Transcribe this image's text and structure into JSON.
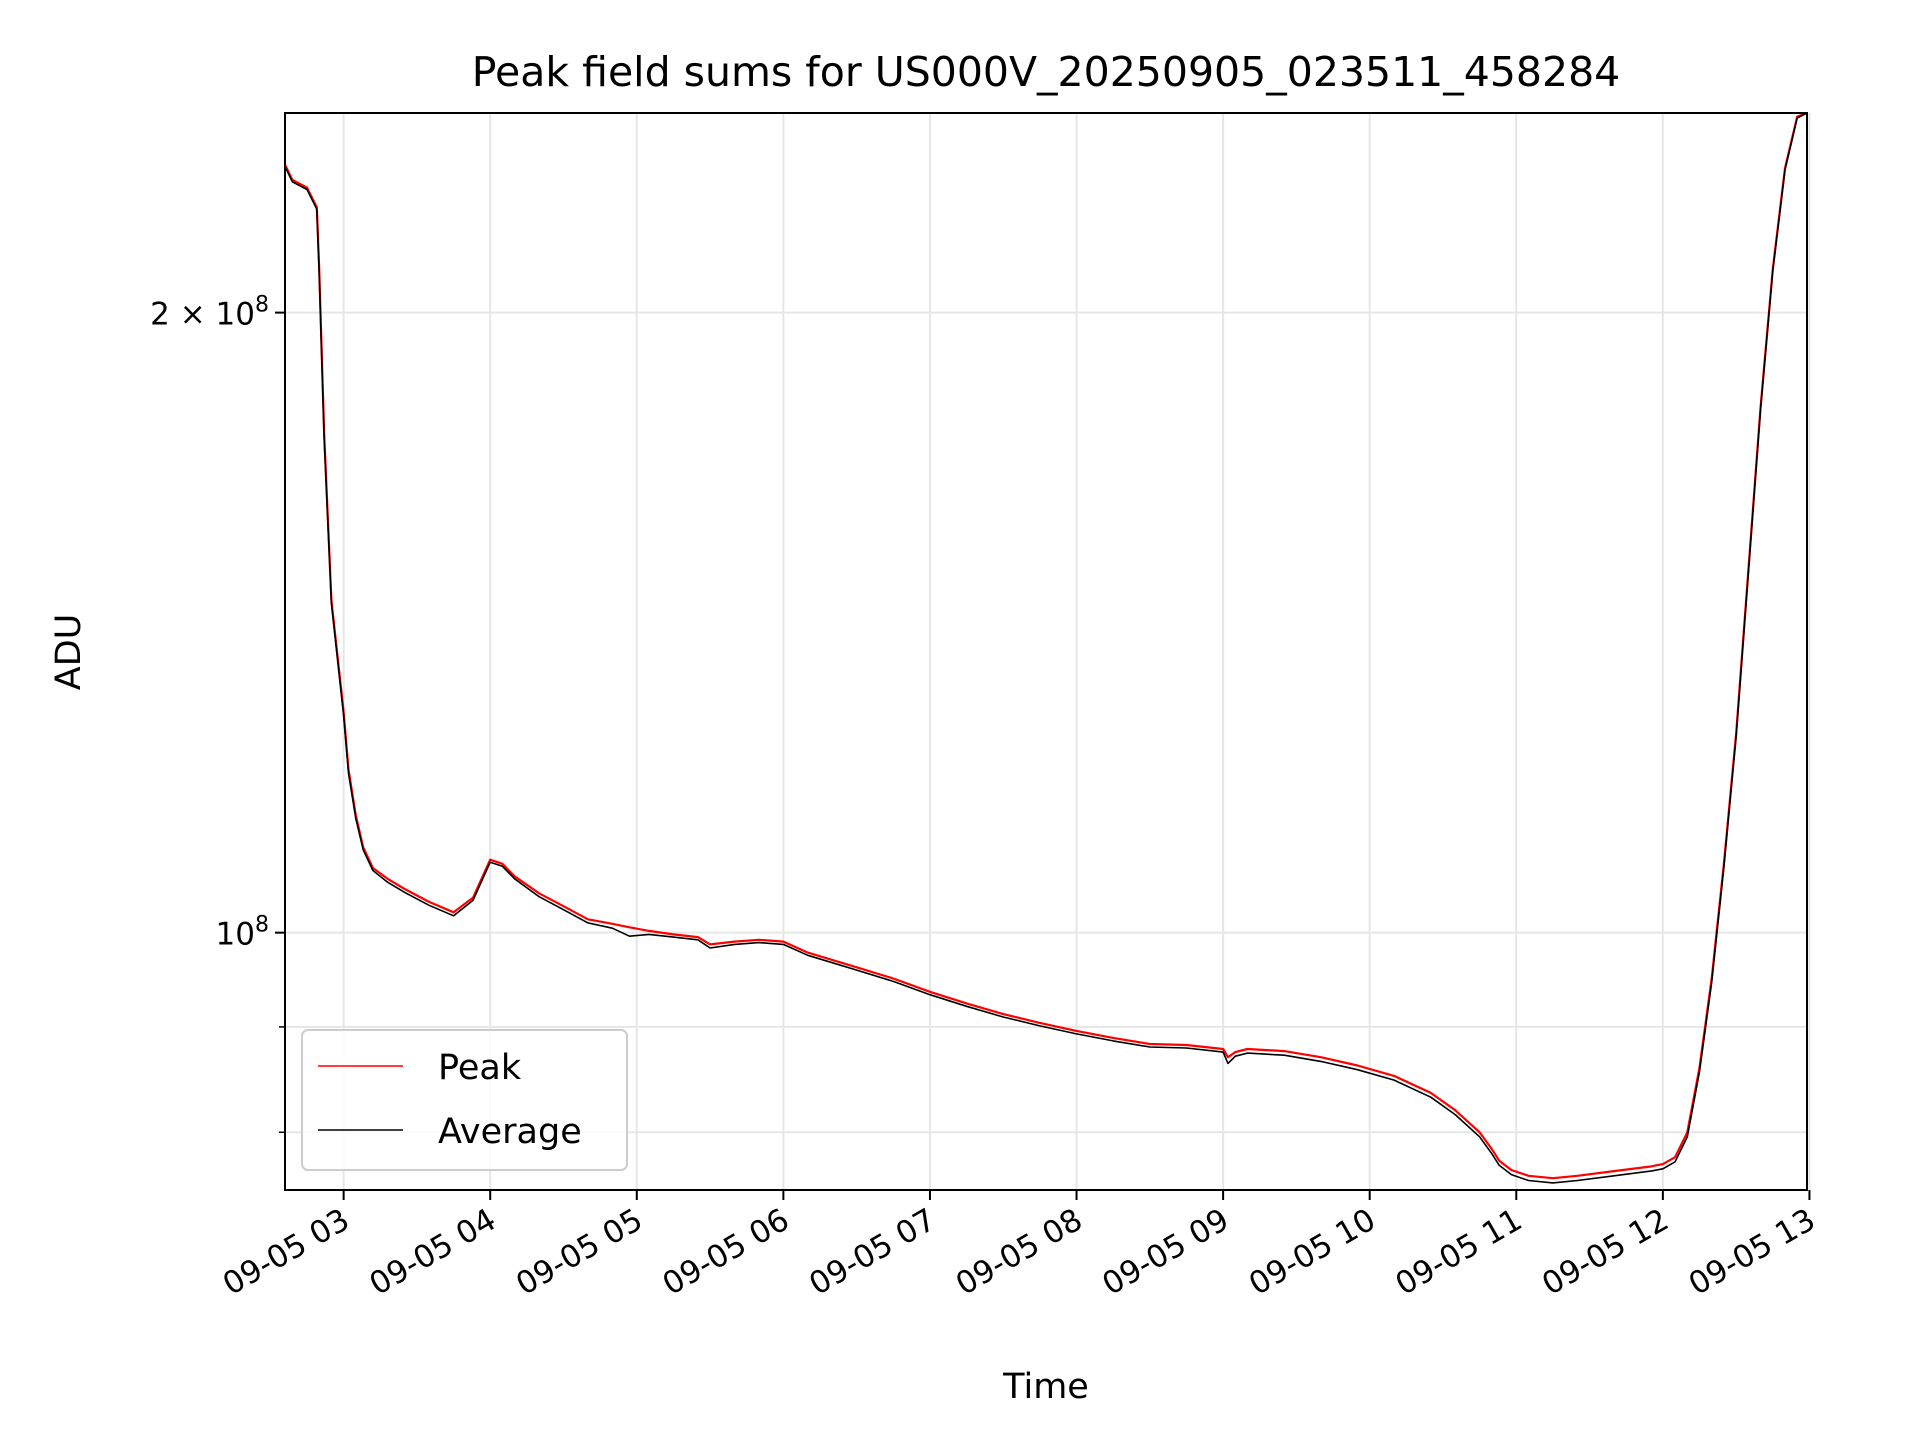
{
  "chart_data": {
    "type": "line",
    "title": "Peak field sums for US000V_20250905_023511_458284",
    "xlabel": "Time",
    "ylabel": "ADU",
    "y_scale": "log",
    "ylim": [
      75000000,
      250000000
    ],
    "xlim": [
      "2025-09-05 02:36",
      "2025-09-05 12:59"
    ],
    "x_ticks": [
      "09-05 03",
      "09-05 04",
      "09-05 05",
      "09-05 06",
      "09-05 07",
      "09-05 08",
      "09-05 09",
      "09-05 10",
      "09-05 11",
      "09-05 12",
      "09-05 13"
    ],
    "y_ticks": [
      {
        "value": 100000000,
        "base": "10",
        "exp": "8",
        "coef": ""
      },
      {
        "value": 200000000,
        "base": "10",
        "exp": "8",
        "coef": "2 × "
      }
    ],
    "y_minor_ticks": [
      80000000,
      90000000
    ],
    "grid": true,
    "legend": "lower-left",
    "series": [
      {
        "name": "Peak",
        "color": "#ff0000",
        "x": [
          "2025-09-05 02:36",
          "2025-09-05 02:39",
          "2025-09-05 02:45",
          "2025-09-05 02:49",
          "2025-09-05 02:50",
          "2025-09-05 02:52",
          "2025-09-05 02:55",
          "2025-09-05 03:00",
          "2025-09-05 03:02",
          "2025-09-05 03:05",
          "2025-09-05 03:08",
          "2025-09-05 03:12",
          "2025-09-05 03:18",
          "2025-09-05 03:25",
          "2025-09-05 03:35",
          "2025-09-05 03:45",
          "2025-09-05 03:53",
          "2025-09-05 04:00",
          "2025-09-05 04:05",
          "2025-09-05 04:10",
          "2025-09-05 04:20",
          "2025-09-05 04:30",
          "2025-09-05 04:40",
          "2025-09-05 04:50",
          "2025-09-05 04:57",
          "2025-09-05 05:05",
          "2025-09-05 05:15",
          "2025-09-05 05:25",
          "2025-09-05 05:30",
          "2025-09-05 05:40",
          "2025-09-05 05:50",
          "2025-09-05 06:00",
          "2025-09-05 06:10",
          "2025-09-05 06:20",
          "2025-09-05 06:30",
          "2025-09-05 06:45",
          "2025-09-05 07:00",
          "2025-09-05 07:15",
          "2025-09-05 07:30",
          "2025-09-05 07:45",
          "2025-09-05 08:00",
          "2025-09-05 08:15",
          "2025-09-05 08:30",
          "2025-09-05 08:45",
          "2025-09-05 09:00",
          "2025-09-05 09:02",
          "2025-09-05 09:05",
          "2025-09-05 09:10",
          "2025-09-05 09:25",
          "2025-09-05 09:40",
          "2025-09-05 09:55",
          "2025-09-05 10:10",
          "2025-09-05 10:25",
          "2025-09-05 10:35",
          "2025-09-05 10:45",
          "2025-09-05 10:50",
          "2025-09-05 10:53",
          "2025-09-05 10:58",
          "2025-09-05 11:05",
          "2025-09-05 11:15",
          "2025-09-05 11:25",
          "2025-09-05 11:40",
          "2025-09-05 11:55",
          "2025-09-05 12:00",
          "2025-09-05 12:05",
          "2025-09-05 12:10",
          "2025-09-05 12:15",
          "2025-09-05 12:20",
          "2025-09-05 12:25",
          "2025-09-05 12:30",
          "2025-09-05 12:35",
          "2025-09-05 12:40",
          "2025-09-05 12:45",
          "2025-09-05 12:50",
          "2025-09-05 12:55",
          "2025-09-05 12:59"
        ],
        "y": [
          236000000,
          232000000,
          230000000,
          225000000,
          210000000,
          175000000,
          145000000,
          128000000,
          120000000,
          114000000,
          110000000,
          107500000,
          106200000,
          105000000,
          103500000,
          102300000,
          104000000,
          108500000,
          108000000,
          106500000,
          104500000,
          103000000,
          101500000,
          101000000,
          100600000,
          100200000,
          99800000,
          99500000,
          98700000,
          99000000,
          99200000,
          99000000,
          97800000,
          97000000,
          96200000,
          95000000,
          93600000,
          92400000,
          91300000,
          90400000,
          89600000,
          88900000,
          88300000,
          88200000,
          87800000,
          87000000,
          87500000,
          87800000,
          87600000,
          87000000,
          86200000,
          85200000,
          83600000,
          82000000,
          80000000,
          78500000,
          77500000,
          76700000,
          76200000,
          76000000,
          76200000,
          76600000,
          77000000,
          77200000,
          77800000,
          80000000,
          86000000,
          95000000,
          108000000,
          125000000,
          150000000,
          180000000,
          210000000,
          235000000,
          249000000,
          250000000
        ]
      },
      {
        "name": "Average",
        "color": "#000000",
        "x": [
          "2025-09-05 02:36",
          "2025-09-05 02:39",
          "2025-09-05 02:45",
          "2025-09-05 02:49",
          "2025-09-05 02:50",
          "2025-09-05 02:52",
          "2025-09-05 02:55",
          "2025-09-05 03:00",
          "2025-09-05 03:02",
          "2025-09-05 03:05",
          "2025-09-05 03:08",
          "2025-09-05 03:12",
          "2025-09-05 03:18",
          "2025-09-05 03:25",
          "2025-09-05 03:35",
          "2025-09-05 03:45",
          "2025-09-05 03:53",
          "2025-09-05 04:00",
          "2025-09-05 04:05",
          "2025-09-05 04:10",
          "2025-09-05 04:20",
          "2025-09-05 04:30",
          "2025-09-05 04:40",
          "2025-09-05 04:50",
          "2025-09-05 04:57",
          "2025-09-05 05:05",
          "2025-09-05 05:15",
          "2025-09-05 05:25",
          "2025-09-05 05:30",
          "2025-09-05 05:40",
          "2025-09-05 05:50",
          "2025-09-05 06:00",
          "2025-09-05 06:10",
          "2025-09-05 06:20",
          "2025-09-05 06:30",
          "2025-09-05 06:45",
          "2025-09-05 07:00",
          "2025-09-05 07:15",
          "2025-09-05 07:30",
          "2025-09-05 07:45",
          "2025-09-05 08:00",
          "2025-09-05 08:15",
          "2025-09-05 08:30",
          "2025-09-05 08:45",
          "2025-09-05 09:00",
          "2025-09-05 09:02",
          "2025-09-05 09:05",
          "2025-09-05 09:10",
          "2025-09-05 09:25",
          "2025-09-05 09:40",
          "2025-09-05 09:55",
          "2025-09-05 10:10",
          "2025-09-05 10:25",
          "2025-09-05 10:35",
          "2025-09-05 10:45",
          "2025-09-05 10:50",
          "2025-09-05 10:53",
          "2025-09-05 10:58",
          "2025-09-05 11:05",
          "2025-09-05 11:15",
          "2025-09-05 11:25",
          "2025-09-05 11:40",
          "2025-09-05 11:55",
          "2025-09-05 12:00",
          "2025-09-05 12:05",
          "2025-09-05 12:10",
          "2025-09-05 12:15",
          "2025-09-05 12:20",
          "2025-09-05 12:25",
          "2025-09-05 12:30",
          "2025-09-05 12:35",
          "2025-09-05 12:40",
          "2025-09-05 12:45",
          "2025-09-05 12:50",
          "2025-09-05 12:55",
          "2025-09-05 12:59"
        ],
        "y": [
          235500000,
          231500000,
          229500000,
          224500000,
          209000000,
          174000000,
          144500000,
          127500000,
          119500000,
          113600000,
          109700000,
          107200000,
          105800000,
          104600000,
          103100000,
          101900000,
          103700000,
          108200000,
          107700000,
          106200000,
          104100000,
          102600000,
          101100000,
          100500000,
          99600000,
          99800000,
          99500000,
          99200000,
          98300000,
          98700000,
          98900000,
          98700000,
          97500000,
          96700000,
          95900000,
          94700000,
          93300000,
          92100000,
          91000000,
          90100000,
          89300000,
          88600000,
          88000000,
          87900000,
          87500000,
          86400000,
          87100000,
          87400000,
          87200000,
          86600000,
          85800000,
          84800000,
          83200000,
          81600000,
          79600000,
          78100000,
          77100000,
          76300000,
          75800000,
          75600000,
          75800000,
          76200000,
          76600000,
          76800000,
          77400000,
          79600000,
          85600000,
          94600000,
          107600000,
          124600000,
          149600000,
          179600000,
          209600000,
          234600000,
          248600000,
          250000000
        ]
      }
    ]
  }
}
